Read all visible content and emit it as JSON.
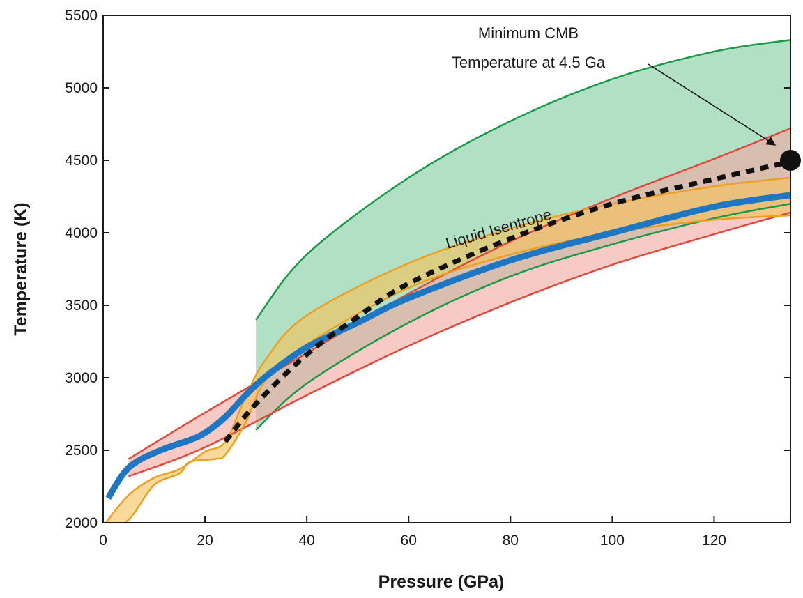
{
  "chart_data": {
    "type": "area",
    "xlabel": "Pressure (GPa)",
    "ylabel": "Temperature (K)",
    "xlim": [
      0,
      135
    ],
    "ylim": [
      2000,
      5500
    ],
    "xticks": [
      0,
      20,
      40,
      60,
      80,
      100,
      120
    ],
    "yticks": [
      2000,
      2500,
      3000,
      3500,
      4000,
      4500,
      5000,
      5500
    ],
    "grid": false,
    "bands": [
      {
        "id": "green",
        "fill": "#7fcc9c",
        "stroke": "#1a9a48",
        "upper": [
          [
            30,
            3400
          ],
          [
            40,
            3850
          ],
          [
            60,
            4380
          ],
          [
            80,
            4770
          ],
          [
            100,
            5060
          ],
          [
            120,
            5250
          ],
          [
            135,
            5330
          ]
        ],
        "lower": [
          [
            30,
            2640
          ],
          [
            40,
            2960
          ],
          [
            60,
            3380
          ],
          [
            80,
            3700
          ],
          [
            100,
            3920
          ],
          [
            120,
            4100
          ],
          [
            135,
            4200
          ]
        ]
      },
      {
        "id": "red",
        "fill": "#f1a6a0",
        "stroke": "#e2473c",
        "upper": [
          [
            5,
            2440
          ],
          [
            20,
            2760
          ],
          [
            40,
            3170
          ],
          [
            60,
            3580
          ],
          [
            80,
            3940
          ],
          [
            100,
            4240
          ],
          [
            120,
            4510
          ],
          [
            135,
            4720
          ]
        ],
        "lower": [
          [
            5,
            2320
          ],
          [
            20,
            2520
          ],
          [
            40,
            2880
          ],
          [
            60,
            3220
          ],
          [
            80,
            3520
          ],
          [
            100,
            3780
          ],
          [
            120,
            3990
          ],
          [
            135,
            4140
          ]
        ]
      },
      {
        "id": "orange",
        "fill": "#f7c257",
        "stroke": "#eda020",
        "upper": [
          [
            0.5,
            2000
          ],
          [
            5,
            2190
          ],
          [
            10,
            2310
          ],
          [
            15,
            2370
          ],
          [
            20,
            2490
          ],
          [
            24,
            2560
          ],
          [
            28,
            2870
          ],
          [
            32,
            3130
          ],
          [
            40,
            3430
          ],
          [
            60,
            3790
          ],
          [
            80,
            4030
          ],
          [
            100,
            4200
          ],
          [
            120,
            4320
          ],
          [
            135,
            4380
          ]
        ],
        "lower": [
          [
            0.5,
            1960
          ],
          [
            5,
            2020
          ],
          [
            10,
            2260
          ],
          [
            15,
            2340
          ],
          [
            17,
            2420
          ],
          [
            22,
            2440
          ],
          [
            24,
            2470
          ],
          [
            28,
            2690
          ],
          [
            32,
            2990
          ],
          [
            40,
            3230
          ],
          [
            60,
            3620
          ],
          [
            80,
            3850
          ],
          [
            100,
            4000
          ],
          [
            120,
            4090
          ],
          [
            135,
            4120
          ]
        ]
      }
    ],
    "series": [
      {
        "id": "blue-curve",
        "color": "#1e77c2",
        "style": "solid",
        "points": [
          [
            1,
            2170
          ],
          [
            4,
            2340
          ],
          [
            7,
            2430
          ],
          [
            12,
            2510
          ],
          [
            17,
            2570
          ],
          [
            20,
            2620
          ],
          [
            24,
            2730
          ],
          [
            28,
            2880
          ],
          [
            32,
            3010
          ],
          [
            40,
            3210
          ],
          [
            50,
            3380
          ],
          [
            60,
            3550
          ],
          [
            80,
            3810
          ],
          [
            100,
            4000
          ],
          [
            120,
            4180
          ],
          [
            135,
            4260
          ]
        ]
      },
      {
        "id": "liquid-isentrope",
        "name": "Liquid Isentrope",
        "color": "#111111",
        "style": "dashed",
        "points": [
          [
            24,
            2560
          ],
          [
            30,
            2820
          ],
          [
            40,
            3160
          ],
          [
            50,
            3420
          ],
          [
            60,
            3650
          ],
          [
            80,
            3960
          ],
          [
            100,
            4200
          ],
          [
            120,
            4370
          ],
          [
            135,
            4490
          ]
        ]
      }
    ],
    "marker": {
      "x": 135,
      "y": 4500,
      "color": "#111111"
    },
    "annotations": [
      {
        "id": "cmb-label",
        "lines": [
          "Minimum CMB",
          "Temperature at 4.5 Ga"
        ],
        "points_to": [
          135,
          4500
        ]
      },
      {
        "id": "isentrope-label",
        "text": "Liquid Isentrope"
      }
    ]
  }
}
